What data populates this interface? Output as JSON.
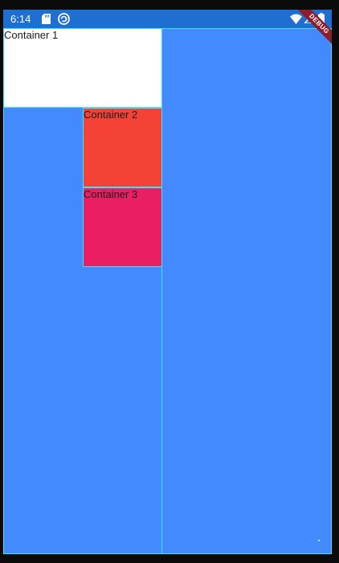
{
  "status_bar": {
    "time": "6:14",
    "icons": [
      "sd-card-icon",
      "sync-icon",
      "wifi-icon",
      "signal-icon",
      "battery-icon"
    ]
  },
  "debug_banner": {
    "label": "DEBUG"
  },
  "containers": [
    {
      "label": "Container 1",
      "color": "#ffffff"
    },
    {
      "label": "Container 2",
      "color": "#f44336"
    },
    {
      "label": "Container 3",
      "color": "#e91e63"
    }
  ],
  "theme": {
    "background": "#448aff",
    "status_bar": "#1e6fd1",
    "outline": "#39e5ff"
  }
}
